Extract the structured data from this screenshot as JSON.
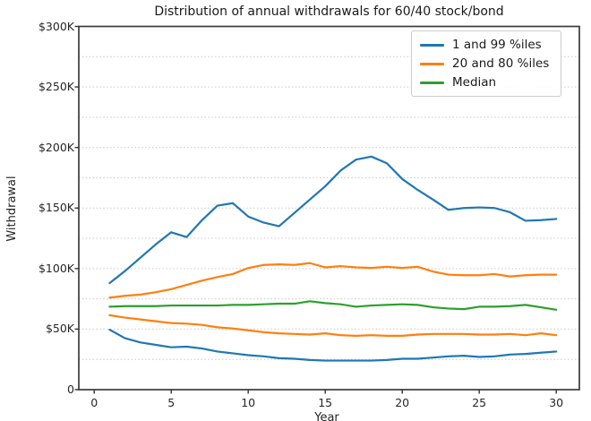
{
  "chart_data": {
    "type": "line",
    "title": "Distribution of annual withdrawals for 60/40 stock/bond",
    "xlabel": "Year",
    "ylabel": "Withdrawal",
    "units": "withdrawal values in thousands of dollars ($K)",
    "xlim": [
      -1,
      31.5
    ],
    "ylim": [
      0,
      300
    ],
    "grid": {
      "axis": "y",
      "style": "dotted",
      "step": 25
    },
    "legend_position": "upper right",
    "x": [
      1,
      2,
      3,
      4,
      5,
      6,
      7,
      8,
      9,
      10,
      11,
      12,
      13,
      14,
      15,
      16,
      17,
      18,
      19,
      20,
      21,
      22,
      23,
      24,
      25,
      26,
      27,
      28,
      29,
      30
    ],
    "x_ticks": [
      {
        "value": 0,
        "label": "0"
      },
      {
        "value": 5,
        "label": "5"
      },
      {
        "value": 10,
        "label": "10"
      },
      {
        "value": 15,
        "label": "15"
      },
      {
        "value": 20,
        "label": "20"
      },
      {
        "value": 25,
        "label": "25"
      },
      {
        "value": 30,
        "label": "30"
      }
    ],
    "y_ticks": [
      {
        "value": 0,
        "label": "0"
      },
      {
        "value": 50,
        "label": "$50K"
      },
      {
        "value": 100,
        "label": "$100K"
      },
      {
        "value": 150,
        "label": "$150K"
      },
      {
        "value": 200,
        "label": "$200K"
      },
      {
        "value": 250,
        "label": "$250K"
      },
      {
        "value": 300,
        "label": "$300K"
      }
    ],
    "series": [
      {
        "name": "1 and 99 %iles",
        "color": "#1f77b4",
        "lines": {
          "p99": [
            88,
            98,
            109,
            120,
            130,
            126,
            140,
            152,
            154,
            143,
            138,
            135,
            146,
            157,
            168,
            181,
            190,
            192.5,
            187,
            174,
            165,
            157,
            148.5,
            150,
            150.5,
            150,
            146.5,
            139.5,
            140,
            141
          ],
          "p1": [
            49.5,
            42.5,
            39,
            37,
            35,
            35.5,
            34,
            31.5,
            30,
            28.5,
            27.5,
            26,
            25.5,
            24.5,
            24,
            24,
            24,
            24,
            24.5,
            25.5,
            25.5,
            26.5,
            27.5,
            28,
            27,
            27.5,
            29,
            29.5,
            30.5,
            31.5
          ]
        }
      },
      {
        "name": "20 and 80 %iles",
        "color": "#ff7f0e",
        "lines": {
          "p80": [
            76,
            77.5,
            78.5,
            80.5,
            83,
            86.5,
            90,
            93,
            95.5,
            100.5,
            103,
            103.5,
            103,
            104.5,
            101,
            102,
            101,
            100.5,
            101.5,
            100.5,
            101.5,
            97.5,
            95,
            94.5,
            94.5,
            95.5,
            93.5,
            94.5,
            95,
            95
          ],
          "p20": [
            61.5,
            59.5,
            58,
            56.5,
            55,
            54.5,
            53.5,
            51.5,
            50.5,
            49,
            47.5,
            46.5,
            46,
            45.5,
            46.5,
            45,
            44.5,
            45,
            44.5,
            44.5,
            45.5,
            46,
            46,
            46,
            45.5,
            45.5,
            46,
            45,
            46.5,
            45
          ]
        }
      },
      {
        "name": "Median",
        "color": "#2ca02c",
        "lines": {
          "median": [
            68.5,
            69,
            69,
            69,
            69.5,
            69.5,
            69.5,
            69.5,
            70,
            70,
            70.5,
            71,
            71,
            73,
            71.5,
            70.5,
            68.5,
            69.5,
            70,
            70.5,
            70,
            68,
            67,
            66.5,
            68.5,
            68.5,
            69,
            70,
            68,
            66
          ]
        }
      }
    ]
  }
}
